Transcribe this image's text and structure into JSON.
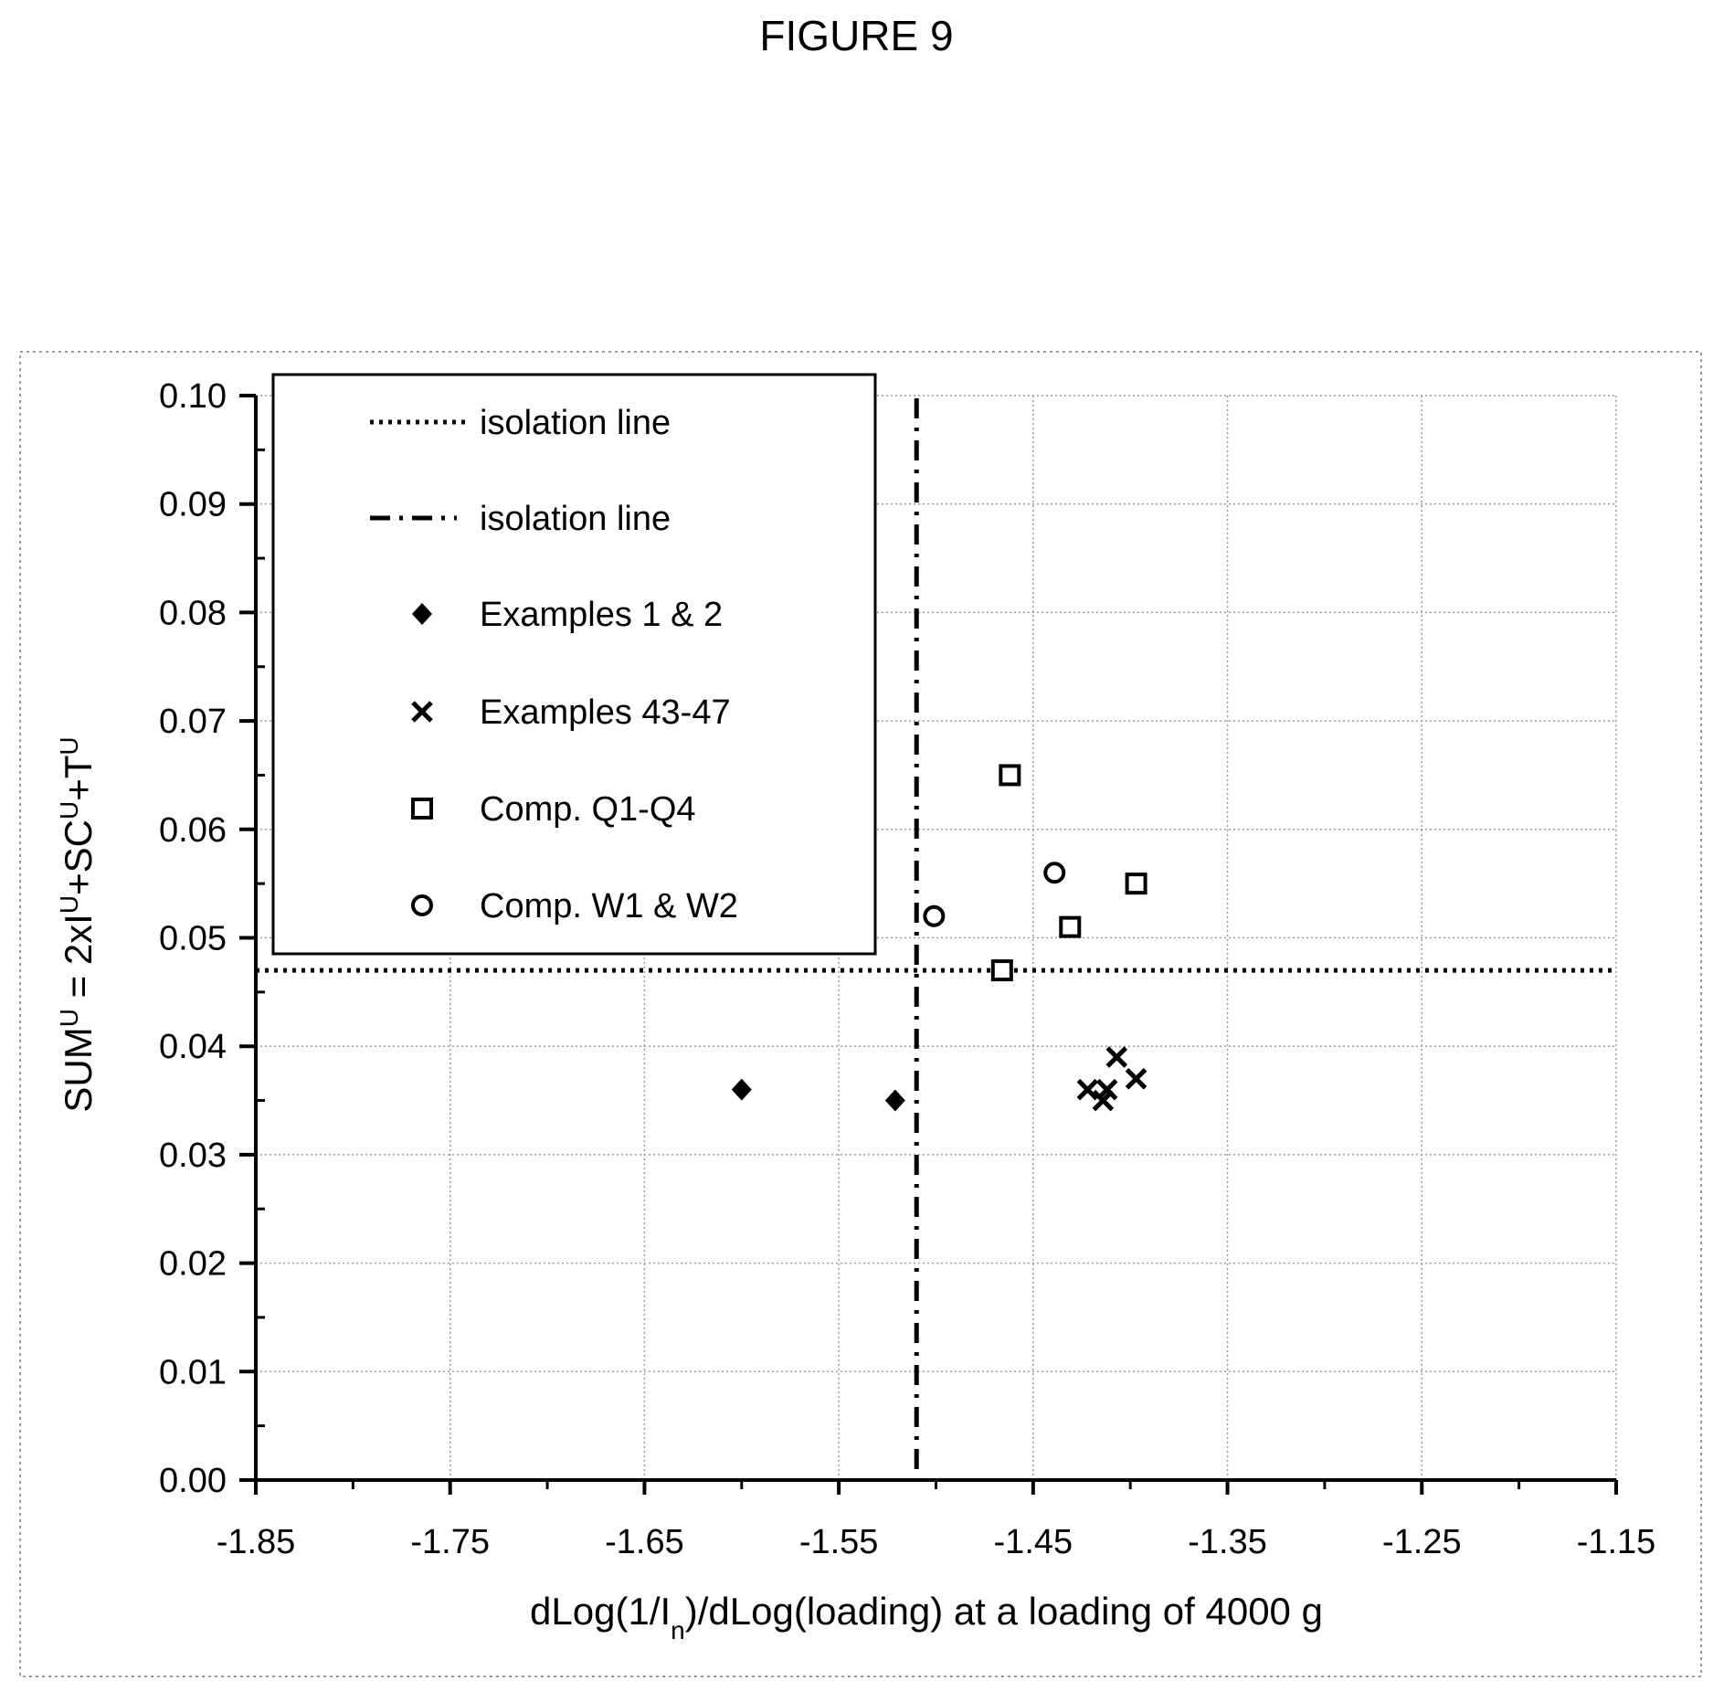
{
  "figure_title": "FIGURE 9",
  "chart_data": {
    "type": "scatter",
    "xlabel": "dLog(1/In)/dLog(loading) at a loading of 4000 g",
    "xlabel_parts": {
      "main": "dLog(1/I",
      "sub": "n",
      "rest": ")/dLog(loading) at a loading of 4000 g"
    },
    "ylabel": "SUMU = 2xIU+SCU+TU",
    "ylabel_parts": [
      {
        "t": "SUM",
        "sup": false
      },
      {
        "t": "U",
        "sup": true
      },
      {
        "t": " = 2xI",
        "sup": false
      },
      {
        "t": "U",
        "sup": true
      },
      {
        "t": "+SC",
        "sup": false
      },
      {
        "t": "U",
        "sup": true
      },
      {
        "t": "+T",
        "sup": false
      },
      {
        "t": "U",
        "sup": true
      }
    ],
    "xlim": [
      -1.85,
      -1.15
    ],
    "ylim": [
      0.0,
      0.1
    ],
    "x_ticks": [
      "-1.85",
      "-1.75",
      "-1.65",
      "-1.55",
      "-1.45",
      "-1.35",
      "-1.25",
      "-1.15"
    ],
    "x_tick_values": [
      -1.85,
      -1.75,
      -1.65,
      -1.55,
      -1.45,
      -1.35,
      -1.25,
      -1.15
    ],
    "y_ticks": [
      "0.00",
      "0.01",
      "0.02",
      "0.03",
      "0.04",
      "0.05",
      "0.06",
      "0.07",
      "0.08",
      "0.09",
      "0.10"
    ],
    "y_tick_values": [
      0.0,
      0.01,
      0.02,
      0.03,
      0.04,
      0.05,
      0.06,
      0.07,
      0.08,
      0.09,
      0.1
    ],
    "grid": true,
    "legend_position": "top-left",
    "reference_lines": [
      {
        "name": "isolation line",
        "orientation": "horizontal",
        "value": 0.047,
        "style": "dotted"
      },
      {
        "name": "isolation line",
        "orientation": "vertical",
        "value": -1.51,
        "style": "dash-dot"
      }
    ],
    "series": [
      {
        "name": "Examples 1 & 2",
        "marker": "diamond-filled",
        "points": [
          [
            -1.6,
            0.036
          ],
          [
            -1.521,
            0.035
          ]
        ]
      },
      {
        "name": "Examples 43-47",
        "marker": "x",
        "points": [
          [
            -1.407,
            0.039
          ],
          [
            -1.422,
            0.036
          ],
          [
            -1.412,
            0.036
          ],
          [
            -1.397,
            0.037
          ],
          [
            -1.414,
            0.035
          ]
        ]
      },
      {
        "name": "Comp. Q1-Q4",
        "marker": "square-open",
        "points": [
          [
            -1.462,
            0.065
          ],
          [
            -1.397,
            0.055
          ],
          [
            -1.431,
            0.051
          ],
          [
            -1.466,
            0.047
          ]
        ]
      },
      {
        "name": "Comp. W1 & W2",
        "marker": "circle-open",
        "points": [
          [
            -1.439,
            0.056
          ],
          [
            -1.501,
            0.052
          ]
        ]
      }
    ]
  }
}
